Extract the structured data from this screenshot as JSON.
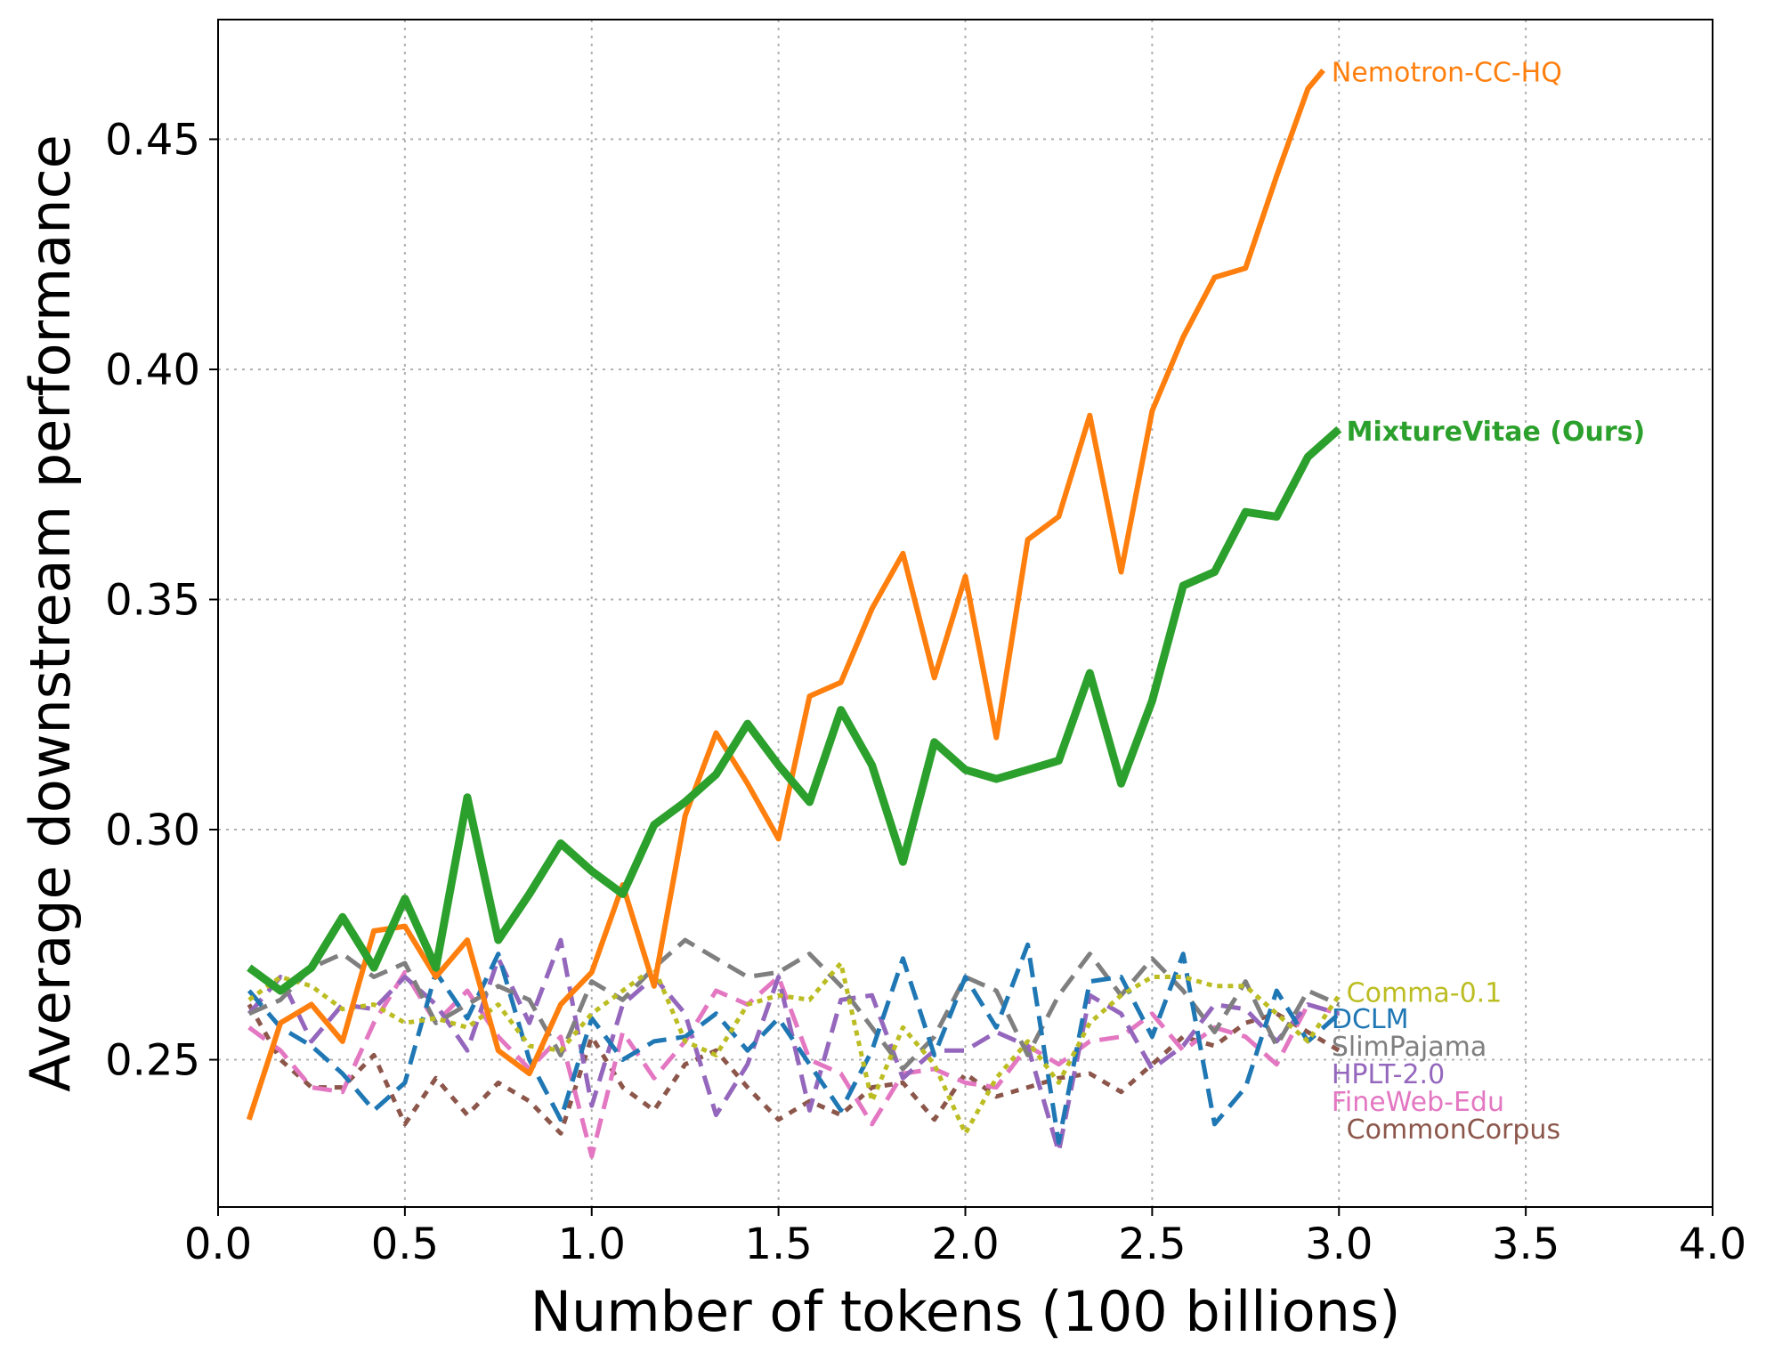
{
  "chart_data": {
    "type": "line",
    "title": "",
    "xlabel": "Number of tokens (100 billions)",
    "ylabel": "Average downstream performance",
    "xlim": [
      0.0,
      4.0
    ],
    "ylim": [
      0.218,
      0.476
    ],
    "x_ticks": [
      "0.0",
      "0.5",
      "1.0",
      "1.5",
      "2.0",
      "2.5",
      "3.0",
      "3.5",
      "4.0"
    ],
    "y_ticks": [
      "0.25",
      "0.30",
      "0.35",
      "0.40",
      "0.45"
    ],
    "x_tick_values": [
      0.0,
      0.5,
      1.0,
      1.5,
      2.0,
      2.5,
      3.0,
      3.5,
      4.0
    ],
    "y_tick_values": [
      0.25,
      0.3,
      0.35,
      0.4,
      0.45
    ],
    "grid": true,
    "legend": "inline labels at line ends",
    "series": [
      {
        "name": "Nemotron-CC-HQ",
        "color": "#ff7f0e",
        "style": "solid",
        "x": [
          0.083,
          0.167,
          0.25,
          0.333,
          0.417,
          0.5,
          0.583,
          0.667,
          0.75,
          0.833,
          0.917,
          1.0,
          1.083,
          1.167,
          1.25,
          1.333,
          1.417,
          1.5,
          1.583,
          1.667,
          1.75,
          1.833,
          1.917,
          2.0,
          2.083,
          2.167,
          2.25,
          2.333,
          2.417,
          2.5,
          2.583,
          2.667,
          2.75,
          2.833,
          2.917,
          2.958
        ],
        "y": [
          0.237,
          0.258,
          0.262,
          0.254,
          0.278,
          0.279,
          0.268,
          0.276,
          0.252,
          0.247,
          0.262,
          0.269,
          0.288,
          0.266,
          0.303,
          0.321,
          0.31,
          0.298,
          0.329,
          0.332,
          0.348,
          0.36,
          0.333,
          0.355,
          0.32,
          0.363,
          0.368,
          0.39,
          0.356,
          0.391,
          0.407,
          0.42,
          0.422,
          0.442,
          0.461,
          0.465
        ]
      },
      {
        "name": "MixtureVitae (Ours)",
        "color": "#2ca02c",
        "style": "solid-thick",
        "x": [
          0.083,
          0.167,
          0.25,
          0.333,
          0.417,
          0.5,
          0.583,
          0.667,
          0.75,
          0.833,
          0.917,
          1.0,
          1.083,
          1.167,
          1.25,
          1.333,
          1.417,
          1.5,
          1.583,
          1.667,
          1.75,
          1.833,
          1.917,
          2.0,
          2.083,
          2.167,
          2.25,
          2.333,
          2.417,
          2.5,
          2.583,
          2.667,
          2.75,
          2.833,
          2.917,
          3.0
        ],
        "y": [
          0.27,
          0.265,
          0.27,
          0.281,
          0.27,
          0.285,
          0.27,
          0.307,
          0.276,
          0.286,
          0.297,
          0.291,
          0.286,
          0.301,
          0.306,
          0.312,
          0.323,
          0.314,
          0.306,
          0.326,
          0.314,
          0.293,
          0.319,
          0.313,
          0.311,
          0.313,
          0.315,
          0.334,
          0.31,
          0.328,
          0.353,
          0.356,
          0.369,
          0.368,
          0.381,
          0.387
        ]
      },
      {
        "name": "Comma-0.1",
        "color": "#bcbd22",
        "style": "dotted",
        "x": [
          0.083,
          0.167,
          0.25,
          0.333,
          0.417,
          0.5,
          0.583,
          0.667,
          0.75,
          0.833,
          0.917,
          1.0,
          1.083,
          1.167,
          1.25,
          1.333,
          1.417,
          1.5,
          1.583,
          1.667,
          1.75,
          1.833,
          1.917,
          2.0,
          2.083,
          2.167,
          2.25,
          2.333,
          2.417,
          2.5,
          2.583,
          2.667,
          2.75,
          2.833,
          2.917,
          3.0
        ],
        "y": [
          0.263,
          0.268,
          0.266,
          0.261,
          0.262,
          0.258,
          0.259,
          0.257,
          0.262,
          0.253,
          0.252,
          0.26,
          0.265,
          0.27,
          0.254,
          0.251,
          0.262,
          0.264,
          0.263,
          0.271,
          0.241,
          0.257,
          0.249,
          0.234,
          0.246,
          0.254,
          0.245,
          0.258,
          0.264,
          0.268,
          0.268,
          0.266,
          0.266,
          0.26,
          0.254,
          0.264
        ]
      },
      {
        "name": "DCLM",
        "color": "#1f77b4",
        "style": "dashed",
        "x": [
          0.083,
          0.167,
          0.25,
          0.333,
          0.417,
          0.5,
          0.583,
          0.667,
          0.75,
          0.833,
          0.917,
          1.0,
          1.083,
          1.167,
          1.25,
          1.333,
          1.417,
          1.5,
          1.583,
          1.667,
          1.75,
          1.833,
          1.917,
          2.0,
          2.083,
          2.167,
          2.25,
          2.333,
          2.417,
          2.5,
          2.583,
          2.667,
          2.75,
          2.833,
          2.917,
          3.0
        ],
        "y": [
          0.265,
          0.257,
          0.253,
          0.247,
          0.239,
          0.245,
          0.269,
          0.259,
          0.273,
          0.25,
          0.237,
          0.259,
          0.25,
          0.254,
          0.255,
          0.26,
          0.252,
          0.259,
          0.249,
          0.239,
          0.252,
          0.272,
          0.251,
          0.268,
          0.257,
          0.275,
          0.232,
          0.267,
          0.268,
          0.255,
          0.273,
          0.236,
          0.244,
          0.265,
          0.254,
          0.26
        ]
      },
      {
        "name": "SlimPajama",
        "color": "#7f7f7f",
        "style": "dashed",
        "x": [
          0.083,
          0.167,
          0.25,
          0.333,
          0.417,
          0.5,
          0.583,
          0.667,
          0.75,
          0.833,
          0.917,
          1.0,
          1.083,
          1.167,
          1.25,
          1.333,
          1.417,
          1.5,
          1.583,
          1.667,
          1.75,
          1.833,
          1.917,
          2.0,
          2.083,
          2.167,
          2.25,
          2.333,
          2.417,
          2.5,
          2.583,
          2.667,
          2.75,
          2.833,
          2.917,
          3.0
        ],
        "y": [
          0.26,
          0.263,
          0.27,
          0.273,
          0.268,
          0.271,
          0.258,
          0.262,
          0.266,
          0.263,
          0.251,
          0.267,
          0.263,
          0.27,
          0.276,
          0.272,
          0.268,
          0.269,
          0.273,
          0.266,
          0.257,
          0.248,
          0.255,
          0.268,
          0.265,
          0.251,
          0.264,
          0.273,
          0.264,
          0.272,
          0.265,
          0.256,
          0.267,
          0.253,
          0.265,
          0.262
        ]
      },
      {
        "name": "HPLT-2.0",
        "color": "#9467bd",
        "style": "dashed",
        "x": [
          0.083,
          0.167,
          0.25,
          0.333,
          0.417,
          0.5,
          0.583,
          0.667,
          0.75,
          0.833,
          0.917,
          1.0,
          1.083,
          1.167,
          1.25,
          1.333,
          1.417,
          1.5,
          1.583,
          1.667,
          1.75,
          1.833,
          1.917,
          2.0,
          2.083,
          2.167,
          2.25,
          2.333,
          2.417,
          2.5,
          2.583,
          2.667,
          2.75,
          2.833,
          2.917,
          3.0
        ],
        "y": [
          0.26,
          0.268,
          0.254,
          0.262,
          0.261,
          0.268,
          0.262,
          0.252,
          0.272,
          0.258,
          0.276,
          0.24,
          0.262,
          0.268,
          0.26,
          0.238,
          0.249,
          0.268,
          0.239,
          0.263,
          0.264,
          0.246,
          0.252,
          0.252,
          0.256,
          0.253,
          0.23,
          0.264,
          0.26,
          0.248,
          0.253,
          0.262,
          0.261,
          0.254,
          0.262,
          0.26
        ]
      },
      {
        "name": "FineWeb-Edu",
        "color": "#e377c2",
        "style": "dashed",
        "x": [
          0.083,
          0.167,
          0.25,
          0.333,
          0.417,
          0.5,
          0.583,
          0.667,
          0.75,
          0.833,
          0.917,
          1.0,
          1.083,
          1.167,
          1.25,
          1.333,
          1.417,
          1.5,
          1.583,
          1.667,
          1.75,
          1.833,
          1.917,
          2.0,
          2.083,
          2.167,
          2.25,
          2.333,
          2.417,
          2.5,
          2.583,
          2.667,
          2.75,
          2.833,
          2.917,
          3.0
        ],
        "y": [
          0.257,
          0.252,
          0.244,
          0.243,
          0.258,
          0.269,
          0.258,
          0.265,
          0.255,
          0.248,
          0.255,
          0.229,
          0.256,
          0.246,
          0.254,
          0.265,
          0.262,
          0.268,
          0.25,
          0.247,
          0.236,
          0.247,
          0.248,
          0.245,
          0.244,
          0.253,
          0.249,
          0.254,
          0.255,
          0.26,
          0.252,
          0.257,
          0.255,
          0.249,
          0.262,
          0.26
        ]
      },
      {
        "name": "CommonCorpus",
        "color": "#8c564b",
        "style": "dotted-dense",
        "x": [
          0.083,
          0.167,
          0.25,
          0.333,
          0.417,
          0.5,
          0.583,
          0.667,
          0.75,
          0.833,
          0.917,
          1.0,
          1.083,
          1.167,
          1.25,
          1.333,
          1.417,
          1.5,
          1.583,
          1.667,
          1.75,
          1.833,
          1.917,
          2.0,
          2.083,
          2.167,
          2.25,
          2.333,
          2.417,
          2.5,
          2.583,
          2.667,
          2.75,
          2.833,
          2.917,
          3.0
        ],
        "y": [
          0.262,
          0.25,
          0.244,
          0.244,
          0.251,
          0.236,
          0.246,
          0.238,
          0.245,
          0.241,
          0.234,
          0.255,
          0.244,
          0.239,
          0.249,
          0.252,
          0.244,
          0.237,
          0.241,
          0.238,
          0.244,
          0.245,
          0.237,
          0.247,
          0.242,
          0.244,
          0.246,
          0.247,
          0.243,
          0.249,
          0.255,
          0.253,
          0.258,
          0.26,
          0.256,
          0.252
        ]
      }
    ],
    "series_labels": [
      {
        "text": "Nemotron-CC-HQ",
        "color": "#ff7f0e",
        "x": 2.98,
        "y": 0.4645,
        "bold": false
      },
      {
        "text": "MixtureVitae (Ours)",
        "color": "#2ca02c",
        "x": 3.02,
        "y": 0.3865,
        "bold": true
      },
      {
        "text": "Comma-0.1",
        "color": "#bcbd22",
        "x": 3.02,
        "y": 0.2645,
        "bold": false
      },
      {
        "text": "DCLM",
        "color": "#1f77b4",
        "x": 2.98,
        "y": 0.2588,
        "bold": false
      },
      {
        "text": "SlimPajama",
        "color": "#7f7f7f",
        "x": 2.98,
        "y": 0.2528,
        "bold": false
      },
      {
        "text": "HPLT-2.0",
        "color": "#9467bd",
        "x": 2.98,
        "y": 0.2468,
        "bold": false
      },
      {
        "text": "FineWeb-Edu",
        "color": "#e377c2",
        "x": 2.98,
        "y": 0.2408,
        "bold": false
      },
      {
        "text": "CommonCorpus",
        "color": "#8c564b",
        "x": 3.02,
        "y": 0.2348,
        "bold": false
      }
    ]
  }
}
